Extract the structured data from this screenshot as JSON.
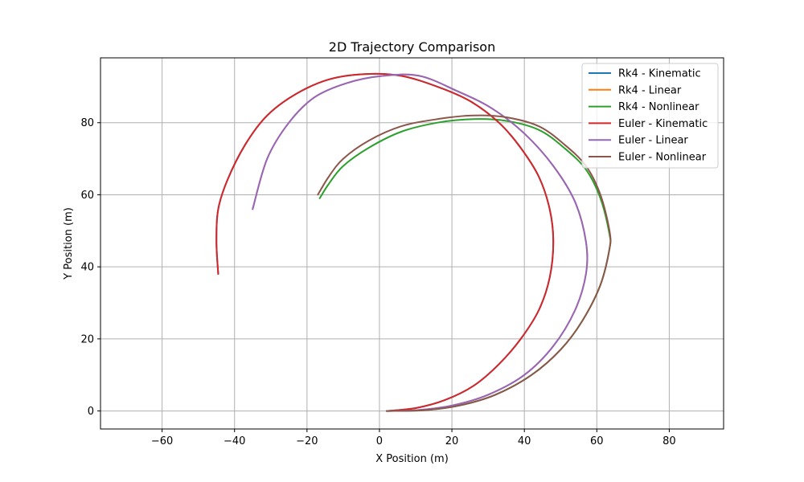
{
  "chart_data": {
    "type": "line",
    "title": "2D Trajectory Comparison",
    "xlabel": "X Position (m)",
    "ylabel": "Y Position (m)",
    "xlim": [
      -77,
      95
    ],
    "ylim": [
      -5,
      98
    ],
    "xticks": [
      -60,
      -40,
      -20,
      0,
      20,
      40,
      60,
      80
    ],
    "yticks": [
      0,
      20,
      40,
      60,
      80
    ],
    "grid": true,
    "legend_position": "top-right",
    "series": [
      {
        "name": "Rk4 - Kinematic",
        "color": "#1f77b4",
        "x": [
          2,
          10,
          18,
          26,
          33,
          39,
          44,
          47,
          48,
          47,
          44,
          39,
          33,
          25,
          16,
          6,
          -4,
          -14,
          -23,
          -31,
          -37,
          -42,
          -44.5,
          -45,
          -44.5
        ],
        "y": [
          0,
          0.8,
          3,
          7,
          13,
          20,
          28,
          37,
          47,
          56,
          65,
          73,
          80,
          86,
          90,
          93,
          93.5,
          92,
          88,
          82,
          74,
          64,
          56,
          47,
          38
        ]
      },
      {
        "name": "Rk4 - Linear",
        "color": "#ff7f0e",
        "x": [
          2,
          10,
          20,
          30,
          40,
          48,
          54,
          57,
          57,
          54,
          48,
          40,
          31,
          21,
          11,
          1,
          -9,
          -18,
          -25,
          -31,
          -35
        ],
        "y": [
          0,
          0.2,
          1.5,
          4.5,
          10,
          18,
          28,
          38,
          47,
          58,
          68,
          77,
          84,
          89,
          93,
          93,
          91,
          87,
          80,
          70,
          56
        ]
      },
      {
        "name": "Rk4 - Nonlinear",
        "color": "#2ca02c",
        "x": [
          2,
          12,
          22,
          32,
          42,
          50,
          56,
          61,
          63.5,
          63.5,
          61,
          57,
          51,
          44,
          35,
          26,
          16,
          6,
          -3,
          -10,
          -14,
          -16.5
        ],
        "y": [
          0,
          0.2,
          1.5,
          4.5,
          10,
          17,
          25,
          35,
          45,
          49,
          59,
          67,
          73,
          78,
          80.5,
          81,
          80,
          77.5,
          73,
          68,
          63,
          59
        ]
      },
      {
        "name": "Euler - Kinematic",
        "color": "#d62728",
        "x": [
          2,
          10,
          18,
          26,
          33,
          39,
          44,
          47,
          48,
          47,
          44,
          39,
          33,
          25,
          16,
          6,
          -4,
          -14,
          -23,
          -31,
          -37,
          -42,
          -44.5,
          -45,
          -44.5
        ],
        "y": [
          0,
          0.8,
          3,
          7,
          13,
          20,
          28,
          37,
          47,
          56,
          65,
          73,
          80,
          86,
          90,
          93,
          93.5,
          92,
          88,
          82,
          74,
          64,
          56,
          47,
          38
        ]
      },
      {
        "name": "Euler - Linear",
        "color": "#9467bd",
        "x": [
          2,
          10,
          20,
          30,
          40,
          48,
          54,
          57,
          57,
          54,
          48,
          40,
          31,
          21,
          11,
          1,
          -9,
          -18,
          -25,
          -31,
          -35
        ],
        "y": [
          0,
          0.2,
          1.5,
          4.5,
          10,
          18,
          28,
          38,
          47,
          58,
          68,
          77,
          84,
          89,
          93,
          93,
          91,
          87,
          80,
          70,
          56
        ]
      },
      {
        "name": "Euler - Nonlinear",
        "color": "#8c564b",
        "x": [
          2,
          12,
          22,
          32,
          42,
          50,
          56,
          61,
          63.5,
          63.5,
          61,
          57,
          51,
          44,
          35,
          26,
          16,
          6,
          -3,
          -10,
          -14,
          -17
        ],
        "y": [
          0,
          0.2,
          1.5,
          4.5,
          10,
          17,
          25,
          35,
          45,
          50,
          60,
          68,
          74,
          79,
          81.5,
          82,
          81,
          79,
          75,
          70,
          65,
          60
        ]
      }
    ]
  }
}
